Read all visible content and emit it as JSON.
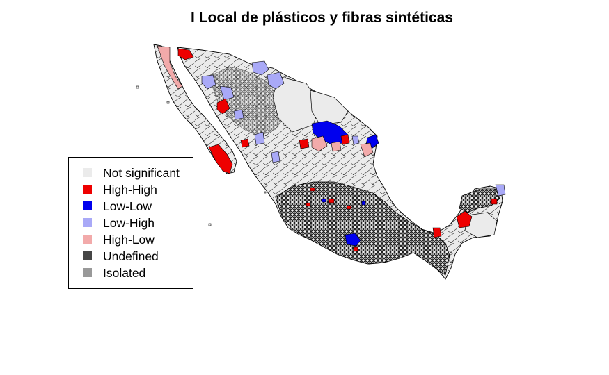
{
  "title": "I Local de plásticos y fibras sintéticas",
  "legend": {
    "items": [
      {
        "label": "Not significant",
        "color": "#ebebeb"
      },
      {
        "label": "High-High",
        "color": "#ee0000"
      },
      {
        "label": "Low-Low",
        "color": "#0000ee"
      },
      {
        "label": "Low-High",
        "color": "#a9a9f7"
      },
      {
        "label": "High-Low",
        "color": "#f2aaaa"
      },
      {
        "label": "Undefined",
        "color": "#464646"
      },
      {
        "label": "Isolated",
        "color": "#999999"
      }
    ]
  },
  "colors": {
    "border": "#000000",
    "base": "#ebebeb",
    "dense": "#3a3a3a"
  }
}
